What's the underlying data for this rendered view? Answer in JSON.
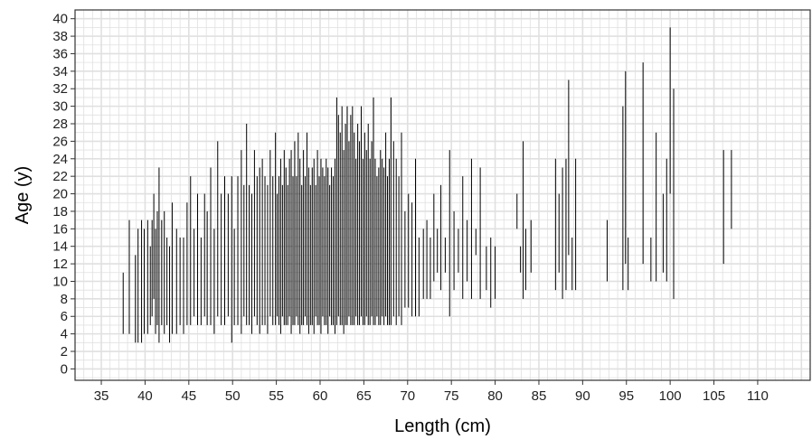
{
  "chart_data": {
    "type": "range-bar",
    "xlabel": "Length (cm)",
    "ylabel": "Age (y)",
    "xlim": [
      32,
      116
    ],
    "ylim": [
      -1.3,
      41
    ],
    "x_ticks": [
      "35",
      "40",
      "45",
      "50",
      "55",
      "60",
      "65",
      "70",
      "75",
      "80",
      "85",
      "90",
      "95",
      "100",
      "105",
      "110"
    ],
    "y_ticks": [
      "0",
      "2",
      "4",
      "6",
      "8",
      "10",
      "12",
      "14",
      "16",
      "18",
      "20",
      "22",
      "24",
      "26",
      "28",
      "30",
      "32",
      "34",
      "36",
      "38",
      "40"
    ],
    "grid": true,
    "grid_minor_x_step": 1,
    "grid_minor_y_step": 1,
    "colors": {
      "bar": "#000000",
      "grid": "#e0e0e0",
      "panel_border": "#333333",
      "background": "#ffffff"
    },
    "series": [
      {
        "ranges": [
          [
            37.5,
            4,
            11
          ],
          [
            38.2,
            4,
            17
          ],
          [
            38.9,
            3,
            13
          ],
          [
            39.2,
            3,
            16
          ],
          [
            39.6,
            3,
            17
          ],
          [
            39.9,
            4,
            16
          ],
          [
            40.3,
            4,
            17
          ],
          [
            40.6,
            5,
            14
          ],
          [
            40.8,
            6,
            17
          ],
          [
            41.0,
            8,
            20
          ],
          [
            41.2,
            4,
            16
          ],
          [
            41.4,
            5,
            18
          ],
          [
            41.6,
            3,
            23
          ],
          [
            41.9,
            5,
            17
          ],
          [
            42.2,
            4,
            18
          ],
          [
            42.5,
            5,
            15
          ],
          [
            42.8,
            3,
            14
          ],
          [
            43.1,
            4,
            19
          ],
          [
            43.6,
            4,
            16
          ],
          [
            44.0,
            5,
            15
          ],
          [
            44.4,
            4,
            15
          ],
          [
            44.8,
            5,
            19
          ],
          [
            45.2,
            5,
            22
          ],
          [
            45.6,
            6,
            16
          ],
          [
            46.0,
            5,
            20
          ],
          [
            46.4,
            5,
            15
          ],
          [
            46.8,
            6,
            20
          ],
          [
            47.1,
            5,
            18
          ],
          [
            47.5,
            5,
            23
          ],
          [
            47.9,
            4,
            16
          ],
          [
            48.3,
            6,
            26
          ],
          [
            48.7,
            5,
            20
          ],
          [
            49.1,
            5,
            22
          ],
          [
            49.5,
            6,
            20
          ],
          [
            49.9,
            3,
            22
          ],
          [
            50.2,
            5,
            16
          ],
          [
            50.6,
            5,
            22
          ],
          [
            51.0,
            4,
            25
          ],
          [
            51.3,
            6,
            21
          ],
          [
            51.6,
            5,
            28
          ],
          [
            51.9,
            5,
            21
          ],
          [
            52.2,
            4,
            20
          ],
          [
            52.5,
            6,
            25
          ],
          [
            52.8,
            5,
            22
          ],
          [
            53.1,
            4,
            23
          ],
          [
            53.4,
            5,
            24
          ],
          [
            53.7,
            5,
            22
          ],
          [
            54.0,
            4,
            21
          ],
          [
            54.3,
            6,
            25
          ],
          [
            54.6,
            5,
            22
          ],
          [
            54.9,
            5,
            27
          ],
          [
            55.1,
            6,
            20
          ],
          [
            55.3,
            5,
            22
          ],
          [
            55.5,
            4,
            24
          ],
          [
            55.7,
            6,
            21
          ],
          [
            55.9,
            5,
            25
          ],
          [
            56.1,
            5,
            23
          ],
          [
            56.3,
            5,
            21
          ],
          [
            56.5,
            6,
            24
          ],
          [
            56.7,
            4,
            25
          ],
          [
            56.9,
            5,
            22
          ],
          [
            57.1,
            5,
            26
          ],
          [
            57.3,
            6,
            22
          ],
          [
            57.5,
            5,
            27
          ],
          [
            57.7,
            4,
            24
          ],
          [
            57.9,
            5,
            21
          ],
          [
            58.1,
            5,
            25
          ],
          [
            58.3,
            6,
            22
          ],
          [
            58.5,
            5,
            27
          ],
          [
            58.7,
            4,
            23
          ],
          [
            58.9,
            5,
            21
          ],
          [
            59.1,
            5,
            23
          ],
          [
            59.3,
            4,
            24
          ],
          [
            59.5,
            6,
            21
          ],
          [
            59.7,
            5,
            25
          ],
          [
            59.9,
            5,
            22
          ],
          [
            60.1,
            4,
            24
          ],
          [
            60.3,
            6,
            23
          ],
          [
            60.5,
            5,
            22
          ],
          [
            60.7,
            5,
            24
          ],
          [
            60.9,
            4,
            23
          ],
          [
            61.1,
            6,
            21
          ],
          [
            61.3,
            5,
            23
          ],
          [
            61.5,
            5,
            22
          ],
          [
            61.7,
            4,
            24
          ],
          [
            61.9,
            5,
            31
          ],
          [
            62.1,
            6,
            29
          ],
          [
            62.3,
            5,
            27
          ],
          [
            62.5,
            5,
            30
          ],
          [
            62.7,
            4,
            25
          ],
          [
            62.9,
            5,
            28
          ],
          [
            63.1,
            5,
            30
          ],
          [
            63.3,
            6,
            26
          ],
          [
            63.5,
            5,
            29
          ],
          [
            63.7,
            5,
            30
          ],
          [
            63.9,
            5,
            27
          ],
          [
            64.1,
            6,
            24
          ],
          [
            64.3,
            5,
            28
          ],
          [
            64.5,
            5,
            26
          ],
          [
            64.7,
            6,
            30
          ],
          [
            64.9,
            5,
            24
          ],
          [
            65.1,
            5,
            27
          ],
          [
            65.3,
            6,
            25
          ],
          [
            65.5,
            5,
            28
          ],
          [
            65.7,
            5,
            24
          ],
          [
            65.9,
            6,
            26
          ],
          [
            66.1,
            5,
            31
          ],
          [
            66.3,
            5,
            24
          ],
          [
            66.5,
            6,
            22
          ],
          [
            66.7,
            5,
            23
          ],
          [
            66.9,
            5,
            25
          ],
          [
            67.1,
            6,
            24
          ],
          [
            67.3,
            5,
            23
          ],
          [
            67.5,
            6,
            27
          ],
          [
            67.7,
            5,
            22
          ],
          [
            67.9,
            5,
            24
          ],
          [
            68.1,
            5,
            31
          ],
          [
            68.4,
            6,
            26
          ],
          [
            68.7,
            5,
            24
          ],
          [
            69.0,
            6,
            22
          ],
          [
            69.3,
            5,
            27
          ],
          [
            69.7,
            7,
            18
          ],
          [
            70.1,
            7,
            20
          ],
          [
            70.5,
            6,
            19
          ],
          [
            70.9,
            6,
            24
          ],
          [
            71.3,
            6,
            15
          ],
          [
            71.8,
            8,
            16
          ],
          [
            72.2,
            8,
            17
          ],
          [
            72.6,
            8,
            15
          ],
          [
            73.0,
            10,
            20
          ],
          [
            73.4,
            11,
            16
          ],
          [
            73.8,
            9,
            21
          ],
          [
            74.3,
            11,
            15
          ],
          [
            74.8,
            6,
            25
          ],
          [
            75.3,
            9,
            18
          ],
          [
            75.8,
            11,
            16
          ],
          [
            76.3,
            8,
            22
          ],
          [
            76.8,
            10,
            17
          ],
          [
            77.3,
            8,
            24
          ],
          [
            77.8,
            13,
            16
          ],
          [
            78.3,
            8,
            23
          ],
          [
            79.0,
            9,
            14
          ],
          [
            79.5,
            7,
            15
          ],
          [
            80.0,
            8,
            14
          ],
          [
            82.5,
            16,
            20
          ],
          [
            82.9,
            11,
            14
          ],
          [
            83.2,
            8,
            26
          ],
          [
            83.5,
            9,
            16
          ],
          [
            84.1,
            11,
            17
          ],
          [
            86.9,
            9,
            24
          ],
          [
            87.3,
            11,
            20
          ],
          [
            87.7,
            8,
            23
          ],
          [
            88.1,
            9,
            24
          ],
          [
            88.4,
            13,
            33
          ],
          [
            88.8,
            9,
            15
          ],
          [
            89.2,
            9,
            24
          ],
          [
            92.8,
            10,
            17
          ],
          [
            94.6,
            9,
            30
          ],
          [
            94.9,
            12,
            34
          ],
          [
            95.2,
            9,
            15
          ],
          [
            96.9,
            12,
            35
          ],
          [
            97.8,
            10,
            15
          ],
          [
            98.4,
            10,
            27
          ],
          [
            99.2,
            11,
            20
          ],
          [
            99.6,
            10,
            24
          ],
          [
            100.0,
            20,
            39
          ],
          [
            100.4,
            8,
            32
          ],
          [
            106.1,
            12,
            25
          ],
          [
            107.0,
            16,
            25
          ]
        ]
      }
    ]
  }
}
